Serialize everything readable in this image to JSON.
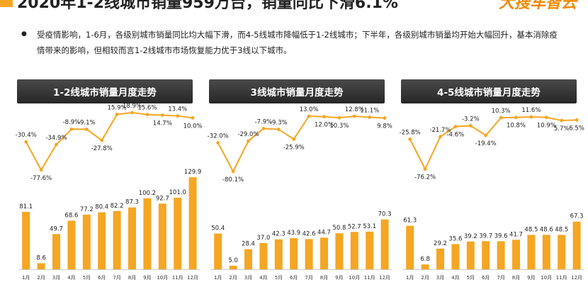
{
  "header": {
    "title": "2020年1-2线城市销量959万台，销量同比下滑6.1%",
    "brand": "大搜车智云"
  },
  "description": "受疫情影响，1-6月，各级别城市销量同比均大幅下滑，而4-5线城市降幅低于1-2线城市；下半年，各级别城市销量均开始大幅回升，基本消除疫情带来的影响，但相较而言1-2线城市市场恢复能力优于3线以下城市。",
  "colors": {
    "accent": "#f5a623",
    "header_bar": "#333333"
  },
  "chart_data": [
    {
      "type": "bar",
      "title": "1-2线城市销量月度走势",
      "categories": [
        "1月",
        "2月",
        "3月",
        "4月",
        "5月",
        "6月",
        "7月",
        "8月",
        "9月",
        "10月",
        "11月",
        "12月"
      ],
      "values": [
        81.1,
        8.6,
        49.7,
        68.6,
        77.2,
        80.4,
        82.2,
        87.3,
        100.2,
        92.7,
        101.0,
        129.9
      ],
      "value_labels": [
        "81.1",
        "8.6",
        "49.7",
        "68.6",
        "77.2",
        "80.4",
        "82.2",
        "87.3",
        "100.2",
        "92.7",
        "101.0",
        "129.9"
      ],
      "growth": [
        -30.4,
        -77.6,
        -34.9,
        -8.9,
        -9.1,
        -27.8,
        15.9,
        18.9,
        15.6,
        14.7,
        13.4,
        10.0
      ],
      "growth_labels": [
        "-30.4%",
        "-77.6%",
        "-34.9%",
        "-8.9%",
        "-9.1%",
        "-27.8%",
        "15.9%",
        "18.9%",
        "15.6%",
        "14.7%",
        "13.4%",
        "10.0%"
      ]
    },
    {
      "type": "bar",
      "title": "3线城市销量月度走势",
      "categories": [
        "1月",
        "2月",
        "3月",
        "4月",
        "5月",
        "6月",
        "7月",
        "8月",
        "9月",
        "10月",
        "11月",
        "12月"
      ],
      "values": [
        50.4,
        5.0,
        28.4,
        37.0,
        42.3,
        43.9,
        42.6,
        44.7,
        50.8,
        52.7,
        53.1,
        70.3
      ],
      "value_labels": [
        "50.4",
        "5.0",
        "28.4",
        "37.0",
        "42.3",
        "43.9",
        "42.6",
        "44.7",
        "50.8",
        "52.7",
        "53.1",
        "70.3"
      ],
      "growth": [
        -32.0,
        -80.1,
        -29.0,
        -7.9,
        -9.3,
        -25.9,
        13.0,
        12.0,
        10.3,
        12.8,
        11.1,
        9.8
      ],
      "growth_labels": [
        "-32.0%",
        "-80.1%",
        "-29.0%",
        "-7.9%",
        "-9.3%",
        "-25.9%",
        "13.0%",
        "12.0%",
        "10.3%",
        "12.8%",
        "11.1%",
        "9.8%"
      ]
    },
    {
      "type": "bar",
      "title": "4-5线城市销量月度走势",
      "categories": [
        "1月",
        "2月",
        "3月",
        "4月",
        "5月",
        "6月",
        "7月",
        "8月",
        "9月",
        "10月",
        "11月",
        "12月"
      ],
      "values": [
        61.3,
        6.8,
        29.2,
        35.6,
        39.2,
        39.7,
        39.6,
        41.7,
        48.5,
        48.6,
        48.5,
        67.3
      ],
      "value_labels": [
        "61.3",
        "6.8",
        "29.2",
        "35.6",
        "39.2",
        "39.7",
        "39.6",
        "41.7",
        "48.5",
        "48.6",
        "48.5",
        "67.3"
      ],
      "growth": [
        -25.8,
        -76.2,
        -21.7,
        -4.6,
        -3.2,
        -19.4,
        10.3,
        10.8,
        11.6,
        10.9,
        5.7,
        6.5
      ],
      "growth_labels": [
        "-25.8%",
        "-76.2%",
        "-21.7%",
        "-4.6%",
        "-3.2%",
        "-19.4%",
        "10.3%",
        "10.8%",
        "11.6%",
        "10.9%",
        "5.7%",
        "6.5%"
      ]
    }
  ]
}
